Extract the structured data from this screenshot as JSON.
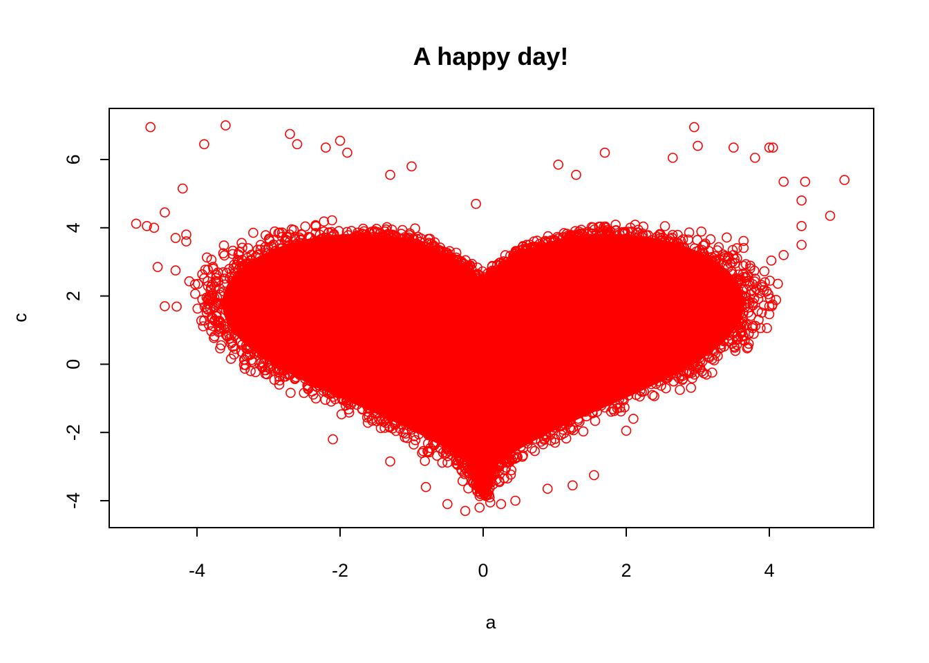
{
  "chart_data": {
    "type": "scatter",
    "title": "A happy day!",
    "xlabel": "a",
    "ylabel": "c",
    "xlim": [
      -5.1,
      5.6
    ],
    "ylim": [
      -4.7,
      7.6
    ],
    "x_ticks": [
      -4,
      -2,
      0,
      2,
      4
    ],
    "x_tick_labels": [
      "-4",
      "-2",
      "0",
      "2",
      "4"
    ],
    "y_ticks": [
      -4,
      -2,
      0,
      2,
      4,
      6
    ],
    "y_tick_labels": [
      "-4",
      "-2",
      "0",
      "2",
      "4",
      "6"
    ],
    "marker": "open-circle",
    "grid": false,
    "legend": "none",
    "series": [
      {
        "color": "#ff0000",
        "points_note": "Dense heart-shaped cloud of tens of thousands of points; representative outlier points listed below, plus the dense core region.",
        "outliers": [
          [
            -4.65,
            6.95
          ],
          [
            -3.6,
            7.0
          ],
          [
            2.95,
            6.95
          ],
          [
            -4.85,
            4.12
          ],
          [
            -4.7,
            4.05
          ],
          [
            -4.6,
            4.0
          ],
          [
            -4.55,
            2.85
          ],
          [
            -4.45,
            1.7
          ],
          [
            -4.45,
            4.45
          ],
          [
            -4.3,
            2.75
          ],
          [
            -4.2,
            5.15
          ],
          [
            -4.15,
            3.8
          ],
          [
            -3.9,
            6.45
          ],
          [
            -3.8,
            1.35
          ],
          [
            -3.6,
            1.1
          ],
          [
            -2.7,
            6.75
          ],
          [
            -2.6,
            6.45
          ],
          [
            -2.2,
            6.35
          ],
          [
            -2.0,
            6.55
          ],
          [
            -1.9,
            6.2
          ],
          [
            -1.3,
            5.55
          ],
          [
            -1.0,
            5.8
          ],
          [
            -0.1,
            4.7
          ],
          [
            1.05,
            5.85
          ],
          [
            1.3,
            5.55
          ],
          [
            1.7,
            6.2
          ],
          [
            2.65,
            6.05
          ],
          [
            3.0,
            6.4
          ],
          [
            3.5,
            6.35
          ],
          [
            3.8,
            6.05
          ],
          [
            4.0,
            6.35
          ],
          [
            4.05,
            6.35
          ],
          [
            4.2,
            5.35
          ],
          [
            4.45,
            4.8
          ],
          [
            4.5,
            5.35
          ],
          [
            4.45,
            4.05
          ],
          [
            4.45,
            3.5
          ],
          [
            4.2,
            3.2
          ],
          [
            4.0,
            1.7
          ],
          [
            3.7,
            0.5
          ],
          [
            4.85,
            4.35
          ],
          [
            5.05,
            5.4
          ],
          [
            3.85,
            1.3
          ],
          [
            3.0,
            -0.05
          ],
          [
            2.75,
            -0.75
          ],
          [
            2.1,
            -1.6
          ],
          [
            2.0,
            -1.95
          ],
          [
            1.55,
            -3.25
          ],
          [
            1.25,
            -3.55
          ],
          [
            0.9,
            -3.65
          ],
          [
            0.45,
            -4.0
          ],
          [
            0.25,
            -4.1
          ],
          [
            0.1,
            -4.05
          ],
          [
            -0.05,
            -4.2
          ],
          [
            -0.25,
            -4.3
          ],
          [
            -0.5,
            -4.1
          ],
          [
            -0.8,
            -3.6
          ],
          [
            -1.3,
            -2.85
          ],
          [
            -2.1,
            -2.2
          ],
          [
            -2.85,
            -0.6
          ],
          [
            -3.25,
            -0.2
          ],
          [
            -3.85,
            1.6
          ],
          [
            -4.15,
            3.6
          ],
          [
            -4.3,
            3.7
          ]
        ]
      }
    ]
  }
}
